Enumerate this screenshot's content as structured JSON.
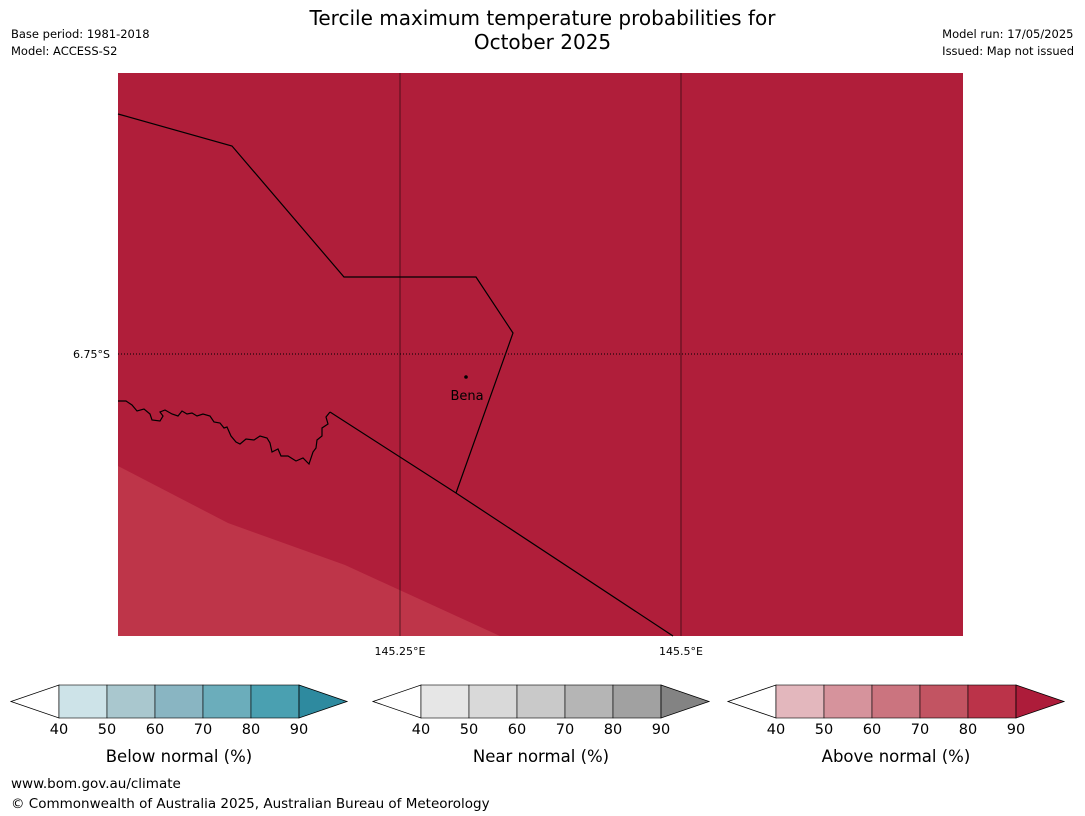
{
  "header": {
    "title_line1": "Tercile maximum temperature probabilities for",
    "title_line2": "October 2025",
    "base_period": "Base period: 1981-2018",
    "model": "Model: ACCESS-S2",
    "model_run": "Model run: 17/05/2025",
    "issued": "Issued: Map not issued"
  },
  "map": {
    "lat_label": "6.75°S",
    "lon_labels": [
      "145.25°E",
      "145.5°E"
    ],
    "place": {
      "name": "Bena"
    },
    "fill_colors": {
      "main": "#b01e3a",
      "lower": "#be3549"
    },
    "grid_color": "#000000"
  },
  "colorbars": [
    {
      "label": "Below normal (%)",
      "ticks": [
        "40",
        "50",
        "60",
        "70",
        "80",
        "90"
      ],
      "colors": [
        "#ffffff",
        "#cde3e8",
        "#a9c7ce",
        "#89b5c2",
        "#6badbb",
        "#4aa0b1",
        "#2e8a9f"
      ]
    },
    {
      "label": "Near normal (%)",
      "ticks": [
        "40",
        "50",
        "60",
        "70",
        "80",
        "90"
      ],
      "colors": [
        "#ffffff",
        "#e6e6e6",
        "#d9d9d9",
        "#c9c9c9",
        "#b5b5b5",
        "#a1a1a1",
        "#838383"
      ]
    },
    {
      "label": "Above normal (%)",
      "ticks": [
        "40",
        "50",
        "60",
        "70",
        "80",
        "90"
      ],
      "colors": [
        "#ffffff",
        "#e3b7bd",
        "#d6939c",
        "#cb747f",
        "#c25462",
        "#bb3349",
        "#ad1c3a"
      ]
    }
  ],
  "footer": {
    "website": "www.bom.gov.au/climate",
    "copyright": "© Commonwealth of Australia 2025, Australian Bureau of Meteorology"
  }
}
